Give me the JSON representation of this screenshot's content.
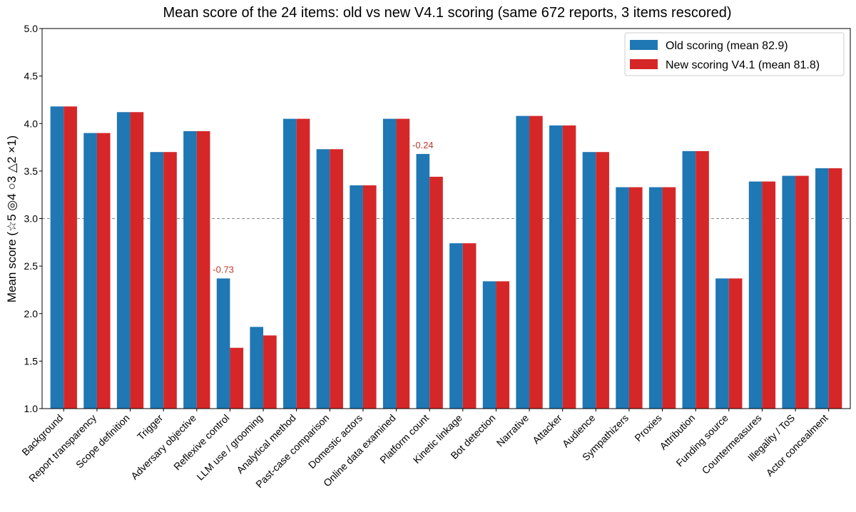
{
  "chart_data": {
    "type": "bar",
    "title": "Mean score of the 24 items: old vs new V4.1 scoring  (same 672 reports, 3 items rescored)",
    "xlabel": "",
    "ylabel": "Mean score  (☆5  ◎4  ○3  △2  ×1)",
    "ylim": [
      1.0,
      5.0
    ],
    "yticks": [
      "1.0",
      "1.5",
      "2.0",
      "2.5",
      "3.0",
      "3.5",
      "4.0",
      "4.5",
      "5.0"
    ],
    "reference_line": 3.0,
    "grid": false,
    "legend_position": "top-right",
    "categories": [
      "Background",
      "Report transparency",
      "Scope definition",
      "Trigger",
      "Adversary objective",
      "Reflexive control",
      "LLM use / grooming",
      "Analytical method",
      "Past-case comparison",
      "Domestic actors",
      "Online data examined",
      "Platform count",
      "Kinetic linkage",
      "Bot detection",
      "Narrative",
      "Attacker",
      "Audience",
      "Sympathizers",
      "Proxies",
      "Attribution",
      "Funding source",
      "Countermeasures",
      "Illegality / ToS",
      "Actor concealment"
    ],
    "series": [
      {
        "name": "Old scoring (mean 82.9)",
        "color": "#1f77b4",
        "values": [
          4.18,
          3.9,
          4.12,
          3.7,
          3.92,
          2.37,
          1.86,
          4.05,
          3.73,
          3.35,
          4.05,
          3.68,
          2.74,
          2.34,
          4.08,
          3.98,
          3.7,
          3.33,
          3.33,
          3.71,
          2.37,
          3.39,
          3.45,
          3.53
        ]
      },
      {
        "name": "New scoring V4.1 (mean 81.8)",
        "color": "#d62728",
        "values": [
          4.18,
          3.9,
          4.12,
          3.7,
          3.92,
          1.64,
          1.77,
          4.05,
          3.73,
          3.35,
          4.05,
          3.44,
          2.74,
          2.34,
          4.08,
          3.98,
          3.7,
          3.33,
          3.33,
          3.71,
          2.37,
          3.39,
          3.45,
          3.53
        ]
      }
    ],
    "annotations": [
      {
        "category": "Reflexive control",
        "text": "-0.73",
        "color": "#c0392b"
      },
      {
        "category": "Platform count",
        "text": "-0.24",
        "color": "#c0392b"
      }
    ]
  }
}
